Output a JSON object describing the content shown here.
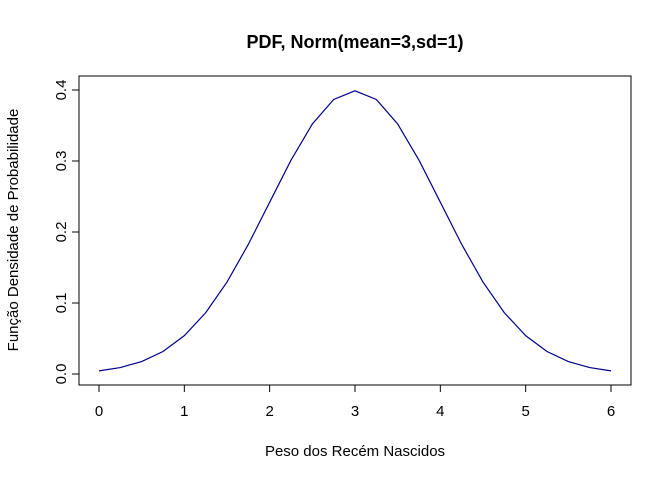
{
  "chart_data": {
    "type": "line",
    "title": "PDF, Norm(mean=3,sd=1)",
    "xlabel": "Peso dos Recém Nascidos",
    "ylabel": "Função Densidade de Probabilidade",
    "xlim": [
      0,
      6
    ],
    "ylim": [
      0,
      0.4
    ],
    "x_ticks": [
      "0",
      "1",
      "2",
      "3",
      "4",
      "5",
      "6"
    ],
    "y_ticks": [
      "0.0",
      "0.1",
      "0.2",
      "0.3",
      "0.4"
    ],
    "grid": false,
    "line_color": "#00008b",
    "series": [
      {
        "x": [
          0,
          0.25,
          0.5,
          0.75,
          1,
          1.25,
          1.5,
          1.75,
          2,
          2.25,
          2.5,
          2.75,
          3,
          3.25,
          3.5,
          3.75,
          4,
          4.25,
          4.5,
          4.75,
          5,
          5.25,
          5.5,
          5.75,
          6
        ],
        "y": [
          0.0044,
          0.0091,
          0.0175,
          0.0317,
          0.054,
          0.0863,
          0.1295,
          0.1826,
          0.242,
          0.3011,
          0.3521,
          0.3867,
          0.3989,
          0.3867,
          0.3521,
          0.3011,
          0.242,
          0.1826,
          0.1295,
          0.0863,
          0.054,
          0.0317,
          0.0175,
          0.0091,
          0.0044
        ]
      }
    ]
  }
}
